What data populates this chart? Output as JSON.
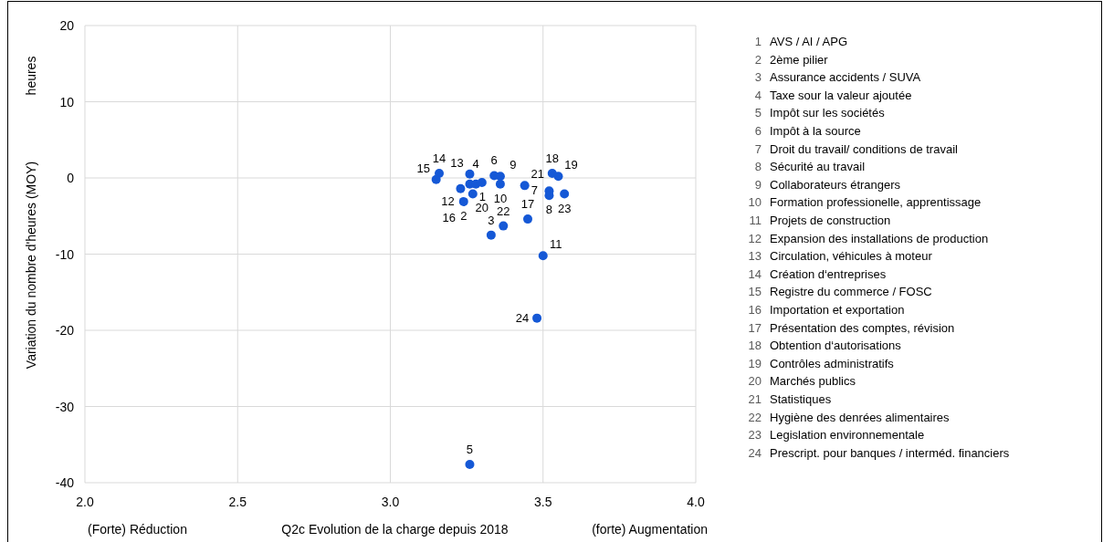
{
  "chart_data": {
    "type": "scatter",
    "xlabel": "Q2c Evolution de la charge depuis 2018",
    "ylabel": "Variation du nombre d'heures (MOY)",
    "annotations": [
      "heures",
      "(Forte) Réduction",
      "(forte) Augmentation",
      "AVS / AI / APG",
      "2ème pilier",
      "Assurance accidents / SUVA",
      "Taxe sour la valeur ajoutée",
      "Impôt sur les sociétés",
      "Impôt à la source",
      "Droit du travail/ conditions de travail",
      "Sécurité au travail",
      "Collaborateurs étrangers",
      "Formation professionelle, apprentissage",
      "Projets de construction",
      "Expansion des installations de production",
      "Circulation, véhicules à moteur",
      "Création d‘entreprises",
      "Registre du commerce / FOSC",
      "Importation et exportation",
      "Présentation des comptes, révision",
      "Obtention d‘autorisations",
      "Contrôles administratifs",
      "Marchés publics",
      "Statistiques",
      "Hygiène des denrées alimentaires",
      "Legislation environnementale",
      "Prescript. pour banques / interméd. financiers"
    ],
    "x": [
      3.26,
      3.24,
      3.33,
      3.28,
      3.26,
      3.34,
      3.52,
      3.52,
      3.36,
      3.36,
      3.5,
      3.23,
      3.26,
      3.16,
      3.15,
      3.27,
      3.45,
      3.53,
      3.55,
      3.3,
      3.44,
      3.37,
      3.57,
      3.48
    ],
    "series": [
      {
        "color": "#1558d6",
        "values": [
          -0.8,
          -3.1,
          -7.5,
          -0.8,
          -37.6,
          0.3,
          -1.7,
          -2.3,
          0.2,
          -0.8,
          -10.2,
          -1.4,
          0.5,
          0.6,
          -0.2,
          -2.1,
          -5.4,
          0.6,
          0.2,
          -0.6,
          -1.0,
          -6.3,
          -2.1,
          -18.4
        ]
      }
    ],
    "value_labels": [
      "1",
      "2",
      "3",
      "4",
      "5",
      "6",
      "7",
      "8",
      "9",
      "10",
      "11",
      "12",
      "13",
      "14",
      "15",
      "16",
      "17",
      "18",
      "19",
      "20",
      "21",
      "22",
      "23",
      "24"
    ],
    "xlim": [
      2,
      4
    ],
    "xticks": [
      {
        "value": 2,
        "label": "2.0"
      },
      {
        "value": 2.5,
        "label": "2.5"
      },
      {
        "value": 3,
        "label": "3.0"
      },
      {
        "value": 3.5,
        "label": "3.5"
      },
      {
        "value": 4,
        "label": "4.0"
      }
    ],
    "ylim": [
      -40,
      20
    ],
    "yticks": [
      -40,
      -30,
      -20,
      -10,
      0,
      10,
      20
    ],
    "grid": true,
    "marker": "circle"
  }
}
